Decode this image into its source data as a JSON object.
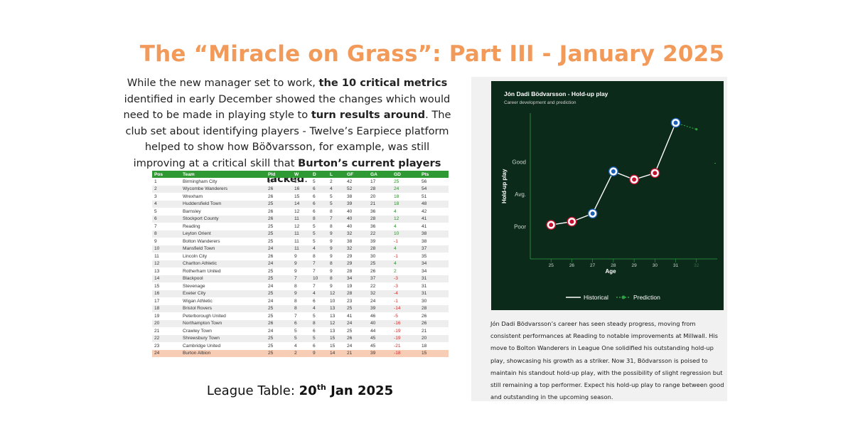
{
  "title": "The “Miracle on Grass”: Part III - January 2025",
  "intro": {
    "p1": "While the new manager set to work, ",
    "b1": "the 10 critical metrics",
    "p2": " identified in early December showed the changes which would need to be made in playing style to ",
    "b2": "turn results around",
    "p3": ".  The club set about identifying players - Twelve’s Earpiece platform helped to show how Böðvarsson, for example, was still improving at a critical skill that ",
    "b3": "Burton’s current players lacked",
    "p4": "."
  },
  "league": {
    "headers": [
      "Pos",
      "Team",
      "Pld",
      "W",
      "D",
      "L",
      "GF",
      "GA",
      "GD",
      "Pts"
    ],
    "highlight_color": "#f8cdb6",
    "header_color": "#2f9a33",
    "rows": [
      [
        "1",
        "Birmingham City",
        "24",
        "17",
        "5",
        "2",
        "42",
        "17",
        "25",
        "56"
      ],
      [
        "2",
        "Wycombe Wanderers",
        "26",
        "16",
        "6",
        "4",
        "52",
        "28",
        "24",
        "54"
      ],
      [
        "3",
        "Wrexham",
        "26",
        "15",
        "6",
        "5",
        "38",
        "20",
        "18",
        "51"
      ],
      [
        "4",
        "Huddersfield Town",
        "25",
        "14",
        "6",
        "5",
        "39",
        "21",
        "18",
        "48"
      ],
      [
        "5",
        "Barnsley",
        "26",
        "12",
        "6",
        "8",
        "40",
        "36",
        "4",
        "42"
      ],
      [
        "6",
        "Stockport County",
        "26",
        "11",
        "8",
        "7",
        "40",
        "28",
        "12",
        "41"
      ],
      [
        "7",
        "Reading",
        "25",
        "12",
        "5",
        "8",
        "40",
        "36",
        "4",
        "41"
      ],
      [
        "8",
        "Leyton Orient",
        "25",
        "11",
        "5",
        "9",
        "32",
        "22",
        "10",
        "38"
      ],
      [
        "9",
        "Bolton Wanderers",
        "25",
        "11",
        "5",
        "9",
        "38",
        "39",
        "-1",
        "38"
      ],
      [
        "10",
        "Mansfield Town",
        "24",
        "11",
        "4",
        "9",
        "32",
        "28",
        "4",
        "37"
      ],
      [
        "11",
        "Lincoln City",
        "26",
        "9",
        "8",
        "9",
        "29",
        "30",
        "-1",
        "35"
      ],
      [
        "12",
        "Charlton Athletic",
        "24",
        "9",
        "7",
        "8",
        "29",
        "25",
        "4",
        "34"
      ],
      [
        "13",
        "Rotherham United",
        "25",
        "9",
        "7",
        "9",
        "28",
        "26",
        "2",
        "34"
      ],
      [
        "14",
        "Blackpool",
        "25",
        "7",
        "10",
        "8",
        "34",
        "37",
        "-3",
        "31"
      ],
      [
        "15",
        "Stevenage",
        "24",
        "8",
        "7",
        "9",
        "19",
        "22",
        "-3",
        "31"
      ],
      [
        "16",
        "Exeter City",
        "25",
        "9",
        "4",
        "12",
        "28",
        "32",
        "-4",
        "31"
      ],
      [
        "17",
        "Wigan Athletic",
        "24",
        "8",
        "6",
        "10",
        "23",
        "24",
        "-1",
        "30"
      ],
      [
        "18",
        "Bristol Rovers",
        "25",
        "8",
        "4",
        "13",
        "25",
        "39",
        "-14",
        "28"
      ],
      [
        "19",
        "Peterborough United",
        "25",
        "7",
        "5",
        "13",
        "41",
        "46",
        "-5",
        "26"
      ],
      [
        "20",
        "Northampton Town",
        "26",
        "6",
        "8",
        "12",
        "24",
        "40",
        "-16",
        "26"
      ],
      [
        "21",
        "Crawley Town",
        "24",
        "5",
        "6",
        "13",
        "25",
        "44",
        "-19",
        "21"
      ],
      [
        "22",
        "Shrewsbury Town",
        "25",
        "5",
        "5",
        "15",
        "26",
        "45",
        "-19",
        "20"
      ],
      [
        "23",
        "Cambridge United",
        "25",
        "4",
        "6",
        "15",
        "24",
        "45",
        "-21",
        "18"
      ],
      [
        "24",
        "Burton Albion",
        "25",
        "2",
        "9",
        "14",
        "21",
        "39",
        "-18",
        "15"
      ]
    ]
  },
  "caption": {
    "text": "League Table: ",
    "bold_num": "20",
    "bold_sup": "th",
    "bold_rest": " Jan 2025"
  },
  "chart_data": {
    "type": "line",
    "title": "Jón Dadi Bödvarsson - Hold-up play",
    "subtitle": "Career development and prediction",
    "xlabel": "Age",
    "ylabel": "Hold-up play",
    "x": [
      25,
      26,
      27,
      28,
      29,
      30,
      31,
      32
    ],
    "y_levels": [
      "Poor",
      "Avg.",
      "Good"
    ],
    "series": [
      {
        "name": "Historical",
        "color": "#ffffff",
        "points": [
          [
            25,
            0.05
          ],
          [
            26,
            0.15
          ],
          [
            27,
            0.4
          ],
          [
            28,
            1.7
          ],
          [
            29,
            1.45
          ],
          [
            30,
            1.65
          ],
          [
            31,
            3.2
          ]
        ]
      },
      {
        "name": "Prediction",
        "color": "#2ea043",
        "points": [
          [
            31,
            3.2
          ],
          [
            32,
            3.0
          ]
        ]
      }
    ],
    "ylim": [
      -1,
      3.5
    ],
    "background": "#0b2a1a"
  },
  "description": "Jón Dadi Bödvarsson’s career has seen steady progress, moving from consistent performances at Reading to notable improvements at Millwall. His move to Bolton Wanderers in League One solidified his outstanding hold-up play, showcasing his growth as a striker. Now 31, Bödvarsson is poised to maintain his standout hold-up play, with the possibility of slight regression but still remaining a top performer. Expect his hold-up play to range between good and outstanding in the upcoming season."
}
